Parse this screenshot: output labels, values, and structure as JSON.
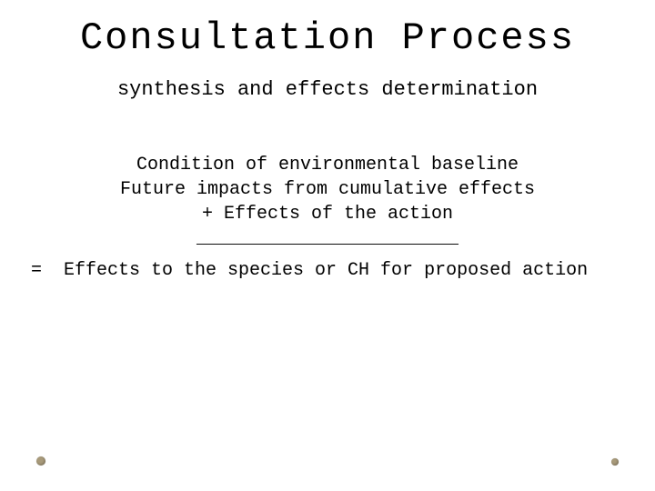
{
  "colors": {
    "background": "#ffffff",
    "text": "#000000",
    "dot": "#a89a7a"
  },
  "typography": {
    "font_family": "Courier New, monospace",
    "title_fontsize": 42,
    "subtitle_fontsize": 22,
    "body_fontsize": 20
  },
  "title": "Consultation Process",
  "subtitle": "synthesis and effects determination",
  "body": {
    "line1": "Condition of environmental baseline",
    "line2": "Future impacts from cumulative effects",
    "line3": "+ Effects of the action",
    "rule": "________________________"
  },
  "result": {
    "eq": "=",
    "text": "Effects to the species or CH for proposed action"
  }
}
